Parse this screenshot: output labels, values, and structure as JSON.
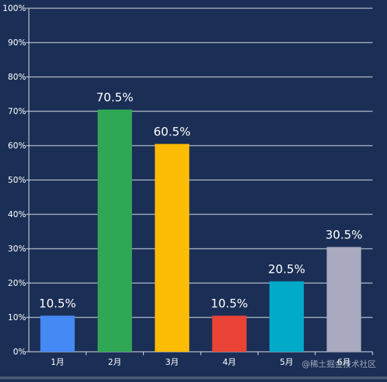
{
  "chart_data": {
    "type": "bar",
    "title": "",
    "xlabel": "",
    "ylabel": "",
    "categories": [
      "1月",
      "2月",
      "3月",
      "4月",
      "5月",
      "6月"
    ],
    "values": [
      10.5,
      70.5,
      60.5,
      10.5,
      20.5,
      30.5
    ],
    "value_labels": [
      "10.5%",
      "70.5%",
      "60.5%",
      "10.5%",
      "20.5%",
      "30.5%"
    ],
    "bar_colors": [
      "#4589f5",
      "#30a754",
      "#fcbc05",
      "#ea4335",
      "#00aac8",
      "#a9a9bf"
    ],
    "ylim": [
      0,
      100
    ],
    "yticks": [
      0,
      10,
      20,
      30,
      40,
      50,
      60,
      70,
      80,
      90,
      100
    ],
    "ytick_labels": [
      "0%",
      "10%",
      "20%",
      "30%",
      "40%",
      "50%",
      "60%",
      "70%",
      "80%",
      "90%",
      "100%"
    ],
    "grid": true,
    "background_color": "#1b2f56",
    "grid_color": "#e8ecf2",
    "text_color": "#ffffff"
  },
  "watermark": {
    "text": "@稀土掘金技术社区"
  }
}
